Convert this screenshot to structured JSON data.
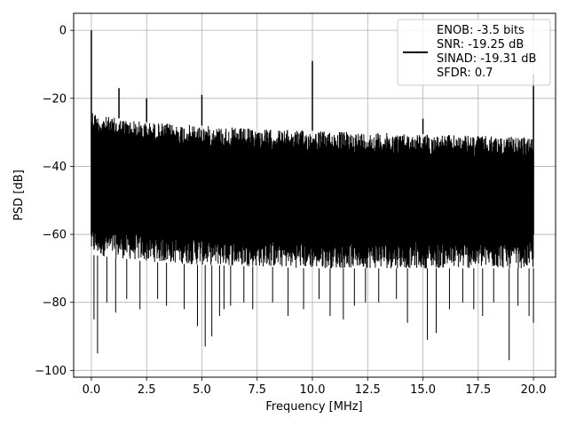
{
  "chart_data": {
    "type": "line",
    "xlabel": "Frequency [MHz]",
    "ylabel": "PSD [dB]",
    "xlim": [
      -0.8,
      21.0
    ],
    "ylim": [
      -102,
      5
    ],
    "grid": true,
    "xticks": [
      0.0,
      2.5,
      5.0,
      7.5,
      10.0,
      12.5,
      15.0,
      17.5,
      20.0
    ],
    "xtick_labels": [
      "0.0",
      "2.5",
      "5.0",
      "7.5",
      "10.0",
      "12.5",
      "15.0",
      "17.5",
      "20.0"
    ],
    "yticks": [
      0,
      -20,
      -40,
      -60,
      -80,
      -100
    ],
    "ytick_labels": [
      "0",
      "−20",
      "−40",
      "−60",
      "−80",
      "−100"
    ],
    "legend_position": "top-right",
    "legend_lines": [
      "ENOB: -3.5 bits",
      "SNR: -19.25 dB",
      "SINAD: -19.31 dB",
      "SFDR: 0.7"
    ],
    "series_color": "#000000",
    "series": [
      {
        "noise_ceiling": [
          [
            0.0,
            -23
          ],
          [
            0.3,
            -25
          ],
          [
            2.5,
            -27
          ],
          [
            5.0,
            -28
          ],
          [
            7.5,
            -29
          ],
          [
            10.0,
            -29.5
          ],
          [
            12.5,
            -30
          ],
          [
            15.0,
            -30.5
          ],
          [
            17.5,
            -31
          ],
          [
            20.0,
            -31.5
          ]
        ],
        "noise_floor": [
          [
            0.0,
            -66
          ],
          [
            2.5,
            -68
          ],
          [
            5.0,
            -69
          ],
          [
            10.0,
            -70
          ],
          [
            15.0,
            -70
          ],
          [
            20.0,
            -70
          ]
        ],
        "deep_dips": [
          [
            0.12,
            -85
          ],
          [
            0.28,
            -95
          ],
          [
            0.7,
            -80
          ],
          [
            1.1,
            -83
          ],
          [
            1.6,
            -79
          ],
          [
            2.2,
            -82
          ],
          [
            3.0,
            -79
          ],
          [
            3.4,
            -81
          ],
          [
            4.2,
            -82
          ],
          [
            4.8,
            -87
          ],
          [
            5.15,
            -93
          ],
          [
            5.45,
            -90
          ],
          [
            5.8,
            -84
          ],
          [
            6.0,
            -82
          ],
          [
            6.3,
            -81
          ],
          [
            6.9,
            -80
          ],
          [
            7.3,
            -82
          ],
          [
            8.2,
            -80
          ],
          [
            8.9,
            -84
          ],
          [
            9.6,
            -82
          ],
          [
            10.3,
            -79
          ],
          [
            10.8,
            -84
          ],
          [
            11.4,
            -85
          ],
          [
            11.9,
            -81
          ],
          [
            12.4,
            -80
          ],
          [
            13.0,
            -80
          ],
          [
            13.8,
            -79
          ],
          [
            14.3,
            -86
          ],
          [
            15.2,
            -91
          ],
          [
            15.6,
            -89
          ],
          [
            16.2,
            -82
          ],
          [
            16.8,
            -80
          ],
          [
            17.3,
            -82
          ],
          [
            17.7,
            -84
          ],
          [
            18.2,
            -80
          ],
          [
            18.9,
            -97
          ],
          [
            19.3,
            -81
          ],
          [
            19.8,
            -84
          ],
          [
            20.0,
            -86
          ]
        ],
        "spikes": [
          [
            0.0,
            0
          ],
          [
            1.25,
            -17
          ],
          [
            2.5,
            -20
          ],
          [
            5.0,
            -19
          ],
          [
            10.0,
            -9
          ],
          [
            15.0,
            -26
          ],
          [
            20.0,
            -13
          ]
        ]
      }
    ]
  }
}
